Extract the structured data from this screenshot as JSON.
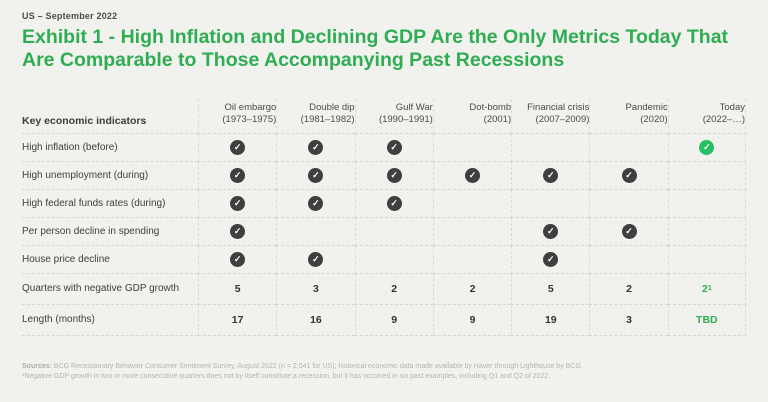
{
  "meta": {
    "eyebrow": "US – September 2022",
    "title": "Exhibit 1 - High Inflation and Declining GDP Are the Only Metrics Today That Are Comparable to Those Accompanying Past Recessions"
  },
  "colors": {
    "page_bg": "#f1f1ee",
    "accent_green": "#2fad53",
    "check_green": "#26bf61",
    "check_dark": "#3f3f3f"
  },
  "icons": {
    "check": "✓"
  },
  "table": {
    "row_header": "Key economic indicators",
    "columns": [
      {
        "name": "Oil embargo",
        "period": "(1973–1975)"
      },
      {
        "name": "Double dip",
        "period": "(1981–1982)"
      },
      {
        "name": "Gulf War",
        "period": "(1990–1991)"
      },
      {
        "name": "Dot-bomb",
        "period": "(2001)"
      },
      {
        "name": "Financial crisis",
        "period": "(2007–2009)"
      },
      {
        "name": "Pandemic",
        "period": "(2020)"
      },
      {
        "name": "Today",
        "period": "(2022–…)"
      }
    ],
    "check_rows": [
      {
        "label": "High inflation (before)",
        "checks": [
          "dark",
          "dark",
          "dark",
          "",
          "",
          "",
          "green"
        ]
      },
      {
        "label": "High unemployment (during)",
        "checks": [
          "dark",
          "dark",
          "dark",
          "dark",
          "dark",
          "dark",
          ""
        ]
      },
      {
        "label": "High federal funds rates (during)",
        "checks": [
          "dark",
          "dark",
          "dark",
          "",
          "",
          "",
          ""
        ]
      },
      {
        "label": "Per person decline in spending",
        "checks": [
          "dark",
          "",
          "",
          "",
          "dark",
          "dark",
          ""
        ]
      },
      {
        "label": "House price decline",
        "checks": [
          "dark",
          "dark",
          "",
          "",
          "dark",
          "",
          ""
        ]
      }
    ],
    "value_rows": [
      {
        "label": "Quarters with negative GDP growth",
        "values": [
          "5",
          "3",
          "2",
          "2",
          "5",
          "2"
        ],
        "today_value": "2",
        "today_sup": "1"
      },
      {
        "label": "Length (months)",
        "values": [
          "17",
          "16",
          "9",
          "9",
          "19",
          "3"
        ],
        "today_value": "TBD",
        "today_sup": ""
      }
    ]
  },
  "footer": {
    "sources_label": "Sources:",
    "sources_text": " BCG Recessionary Behavior Consumer Sentiment Survey, August 2022 (n = 2,041 for US); historical economic data made available by Haver through Lighthouse by BCG.",
    "footnote": "¹Negative GDP growth in two or more consecutive quarters does not by itself constitute a recession, but it has occurred in six past examples, including Q1 and Q2 of 2022."
  }
}
